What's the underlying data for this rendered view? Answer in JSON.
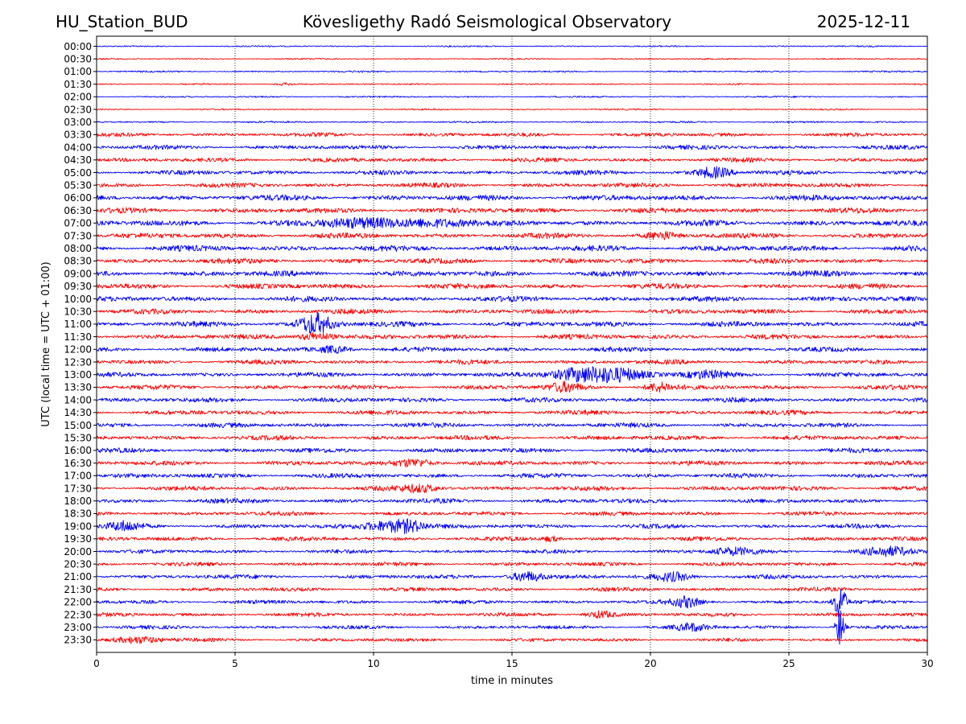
{
  "header": {
    "station": "HU_Station_BUD",
    "title": "Kövesligethy Radó Seismological Observatory",
    "date": "2025-12-11"
  },
  "chart_data": {
    "type": "line",
    "xlabel": "time in minutes",
    "ylabel": "UTC (local time = UTC + 01:00)",
    "xlim": [
      0,
      30
    ],
    "xticks": [
      0,
      5,
      10,
      15,
      20,
      25,
      30
    ],
    "grid": "vertical dotted at x ticks",
    "colors": [
      "#0000ff",
      "#ff0000"
    ],
    "rows": [
      "00:00",
      "00:30",
      "01:00",
      "01:30",
      "02:00",
      "02:30",
      "03:00",
      "03:30",
      "04:00",
      "04:30",
      "05:00",
      "05:30",
      "06:00",
      "06:30",
      "07:00",
      "07:30",
      "08:00",
      "08:30",
      "09:00",
      "09:30",
      "10:00",
      "10:30",
      "11:00",
      "11:30",
      "12:00",
      "12:30",
      "13:00",
      "13:30",
      "14:00",
      "14:30",
      "15:00",
      "15:30",
      "16:00",
      "16:30",
      "17:00",
      "17:30",
      "18:00",
      "18:30",
      "19:00",
      "19:30",
      "20:00",
      "20:30",
      "21:00",
      "21:30",
      "22:00",
      "22:30",
      "23:00",
      "23:30"
    ],
    "noise_level": [
      0.8,
      0.8,
      0.9,
      0.8,
      0.9,
      0.8,
      1.0,
      2.2,
      2.4,
      2.4,
      2.6,
      2.6,
      3.2,
      3.0,
      3.2,
      3.0,
      3.2,
      3.0,
      3.2,
      3.0,
      3.0,
      2.8,
      3.0,
      2.8,
      2.6,
      2.6,
      2.6,
      2.6,
      2.6,
      2.6,
      2.6,
      2.6,
      2.6,
      2.6,
      2.6,
      2.6,
      2.6,
      2.4,
      2.4,
      2.4,
      2.2,
      2.2,
      2.4,
      2.2,
      2.2,
      2.2,
      2.0,
      2.0
    ],
    "events": [
      {
        "row": "01:30",
        "minute": 6.8,
        "amp": 1.5,
        "dur": 0.4
      },
      {
        "row": "05:00",
        "minute": 22.3,
        "amp": 6,
        "dur": 0.6
      },
      {
        "row": "07:00",
        "minute": 9.5,
        "amp": 5,
        "dur": 1.4
      },
      {
        "row": "07:00",
        "minute": 12.2,
        "amp": 5,
        "dur": 1.2
      },
      {
        "row": "07:30",
        "minute": 20.4,
        "amp": 4,
        "dur": 0.5
      },
      {
        "row": "11:00",
        "minute": 7.9,
        "amp": 12,
        "dur": 0.6
      },
      {
        "row": "11:30",
        "minute": 7.9,
        "amp": 5,
        "dur": 0.6
      },
      {
        "row": "12:00",
        "minute": 8.6,
        "amp": 4,
        "dur": 0.6
      },
      {
        "row": "13:00",
        "minute": 17.3,
        "amp": 7,
        "dur": 0.9
      },
      {
        "row": "13:00",
        "minute": 18.6,
        "amp": 8,
        "dur": 1.1
      },
      {
        "row": "13:00",
        "minute": 22.0,
        "amp": 4,
        "dur": 0.8
      },
      {
        "row": "13:30",
        "minute": 16.9,
        "amp": 5,
        "dur": 0.6
      },
      {
        "row": "13:30",
        "minute": 20.3,
        "amp": 5,
        "dur": 0.5
      },
      {
        "row": "16:30",
        "minute": 11.5,
        "amp": 5,
        "dur": 0.7
      },
      {
        "row": "17:30",
        "minute": 11.7,
        "amp": 4,
        "dur": 0.7
      },
      {
        "row": "19:00",
        "minute": 1.0,
        "amp": 5,
        "dur": 0.6
      },
      {
        "row": "19:00",
        "minute": 10.5,
        "amp": 6,
        "dur": 1.0
      },
      {
        "row": "19:00",
        "minute": 11.3,
        "amp": 5,
        "dur": 0.6
      },
      {
        "row": "19:30",
        "minute": 16.4,
        "amp": 3,
        "dur": 0.3
      },
      {
        "row": "20:00",
        "minute": 23.0,
        "amp": 4,
        "dur": 0.8
      },
      {
        "row": "20:00",
        "minute": 28.6,
        "amp": 5,
        "dur": 0.9
      },
      {
        "row": "21:00",
        "minute": 15.5,
        "amp": 6,
        "dur": 0.6
      },
      {
        "row": "21:00",
        "minute": 20.8,
        "amp": 5,
        "dur": 0.7
      },
      {
        "row": "22:00",
        "minute": 21.3,
        "amp": 6,
        "dur": 0.5
      },
      {
        "row": "22:00",
        "minute": 26.85,
        "amp": 22,
        "dur": 0.2
      },
      {
        "row": "22:30",
        "minute": 18.2,
        "amp": 4,
        "dur": 0.5
      },
      {
        "row": "23:00",
        "minute": 21.5,
        "amp": 4,
        "dur": 0.6
      },
      {
        "row": "23:00",
        "minute": 26.85,
        "amp": 24,
        "dur": 0.15
      },
      {
        "row": "23:30",
        "minute": 1.5,
        "amp": 4,
        "dur": 0.8
      }
    ]
  }
}
